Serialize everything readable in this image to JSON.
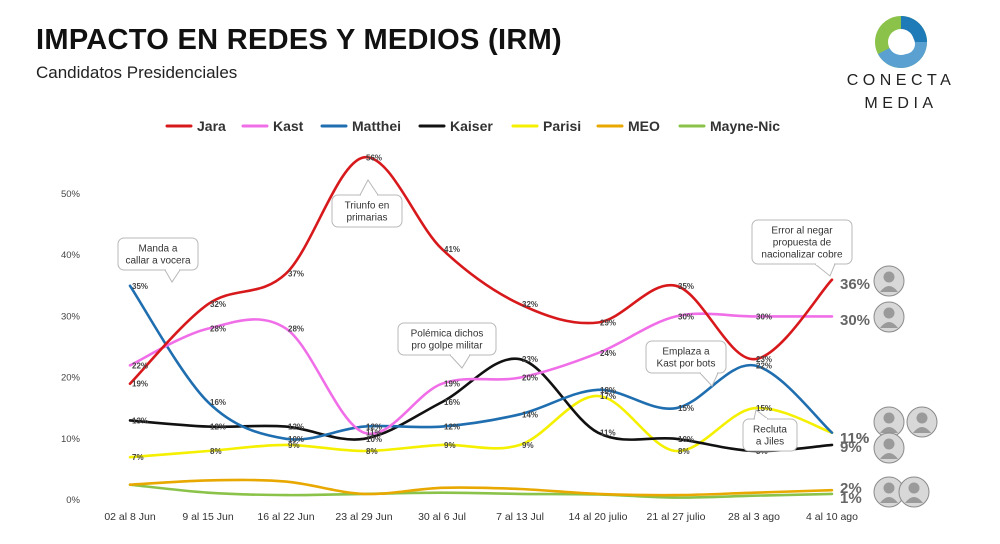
{
  "header": {
    "title": "IMPACTO EN REDES Y MEDIOS (IRM)",
    "subtitle": "Candidatos Presidenciales"
  },
  "logo": {
    "line1": "CONECTA",
    "line2": "MEDIA"
  },
  "chart_data": {
    "type": "line",
    "title": "IMPACTO EN REDES Y MEDIOS (IRM)",
    "subtitle": "Candidatos Presidenciales",
    "categories": [
      "02 al 8 Jun",
      "9 al 15 Jun",
      "16 al 22 Jun",
      "23 al 29 Jun",
      "30 al 6 Jul",
      "7 al 13 Jul",
      "14 al 20 julio",
      "21 al 27 julio",
      "28 al 3 ago",
      "4 al 10 ago"
    ],
    "ylim": [
      0,
      50
    ],
    "yticks": [
      "0%",
      "10%",
      "20%",
      "30%",
      "40%",
      "50%"
    ],
    "grid": false,
    "legend": "top",
    "series": [
      {
        "name": "Jara",
        "color": "#d7191c",
        "values": [
          19,
          32,
          37,
          56,
          41,
          32,
          29,
          35,
          23,
          36
        ],
        "labels": [
          "19%",
          "32%",
          "37%",
          "56%",
          "41%",
          "32%",
          "29%",
          "35%",
          "23%",
          ""
        ],
        "end_label": "36%"
      },
      {
        "name": "Kast",
        "color": "#f06ee8",
        "values": [
          22,
          28,
          28,
          11,
          19,
          20,
          24,
          30,
          30,
          30
        ],
        "labels": [
          "22%",
          "28%",
          "28%",
          "11%",
          "19%",
          "20%",
          "24%",
          "30%",
          "30%",
          ""
        ],
        "end_label": "30%"
      },
      {
        "name": "Matthei",
        "color": "#1f6eb0",
        "values": [
          35,
          16,
          10,
          12,
          12,
          14,
          18,
          15,
          22,
          11
        ],
        "labels": [
          "35%",
          "16%",
          "10%",
          "12%",
          "12%",
          "14%",
          "18%",
          "15%",
          "22%",
          ""
        ],
        "end_label": "11%"
      },
      {
        "name": "Kaiser",
        "color": "#111111",
        "values": [
          13,
          12,
          12,
          10,
          16,
          23,
          11,
          10,
          8,
          9
        ],
        "labels": [
          "13%",
          "12%",
          "12%",
          "10%",
          "16%",
          "23%",
          "11%",
          "10%",
          "8%",
          ""
        ],
        "end_label": "9%"
      },
      {
        "name": "Parisi",
        "color": "#f4f000",
        "values": [
          7,
          8,
          9,
          8,
          9,
          9,
          17,
          8,
          15,
          11
        ],
        "labels": [
          "7%",
          "8%",
          "9%",
          "8%",
          "9%",
          "9%",
          "17%",
          "8%",
          "15%",
          ""
        ],
        "end_label": "11%"
      },
      {
        "name": "MEO",
        "color": "#e8a800",
        "values": [
          2.5,
          3.2,
          3,
          1,
          2,
          1.8,
          1,
          0.8,
          1.2,
          1.6
        ],
        "labels": [],
        "end_label": "2%"
      },
      {
        "name": "Mayne-Nic",
        "color": "#8bc34a",
        "values": [
          2.5,
          1.2,
          0.8,
          1,
          1.2,
          1,
          0.9,
          0.4,
          0.7,
          1
        ],
        "labels": [],
        "end_label": "1%"
      }
    ],
    "annotations": [
      {
        "text": [
          "Manda a",
          "callar a vocera"
        ],
        "category": "02 al 8 Jun"
      },
      {
        "text": [
          "Triunfo en",
          "primarias"
        ],
        "category": "23 al 29 Jun"
      },
      {
        "text": [
          "Polémica dichos",
          "pro golpe militar"
        ],
        "category": "7 al 13 Jul"
      },
      {
        "text": [
          "Emplaza a",
          "Kast por bots"
        ],
        "category": "28 al 3 ago"
      },
      {
        "text": [
          "Recluta",
          "a Jiles"
        ],
        "category": "28 al 3 ago"
      },
      {
        "text": [
          "Error al negar",
          "propuesta de",
          "nacionalizar cobre"
        ],
        "category": "4 al 10 ago"
      }
    ]
  }
}
